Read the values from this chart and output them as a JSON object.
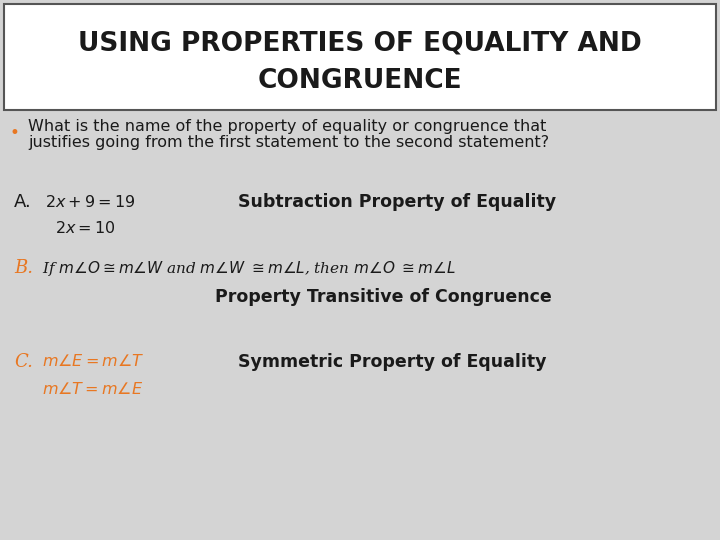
{
  "bg_color": "#d4d4d4",
  "title_bg_color": "#ffffff",
  "title_line1": "USING PROPERTIES OF EQUALITY AND",
  "title_line2": "CONGRUENCE",
  "title_fontsize": 19,
  "title_font_color": "#1a1a1a",
  "bullet_color": "#e87722",
  "bullet_text_line1": "What is the name of the property of equality or congruence that",
  "bullet_text_line2": "justifies going from the first statement to the second statement?",
  "bullet_fontsize": 11.5,
  "section_A_label": "A.",
  "section_A_math1": "$2x + 9 = 19$",
  "section_A_math2": "$2x = 10$",
  "section_A_answer": "Subtraction Property of Equality",
  "section_B_label": "B.",
  "section_B_math": "If $m\\angle O  \\cong m\\angle W$ and $m\\angle W$ $\\cong m\\angle L$, then $m\\angle O$ $\\cong m\\angle L$",
  "section_B_answer": "Property Transitive of Congruence",
  "section_C_label": "C.",
  "section_C_math1": "$m\\angle E = m\\angle T$",
  "section_C_math2": "$m\\angle T = m\\angle E$",
  "section_C_answer": "Symmetric Property of Equality",
  "label_color_A": "#1a1a1a",
  "label_color_B": "#e87722",
  "label_color_C": "#e87722",
  "math_color": "#1a1a1a",
  "answer_color": "#1a1a1a",
  "math_fontsize": 11.5,
  "answer_fontsize": 12.5
}
